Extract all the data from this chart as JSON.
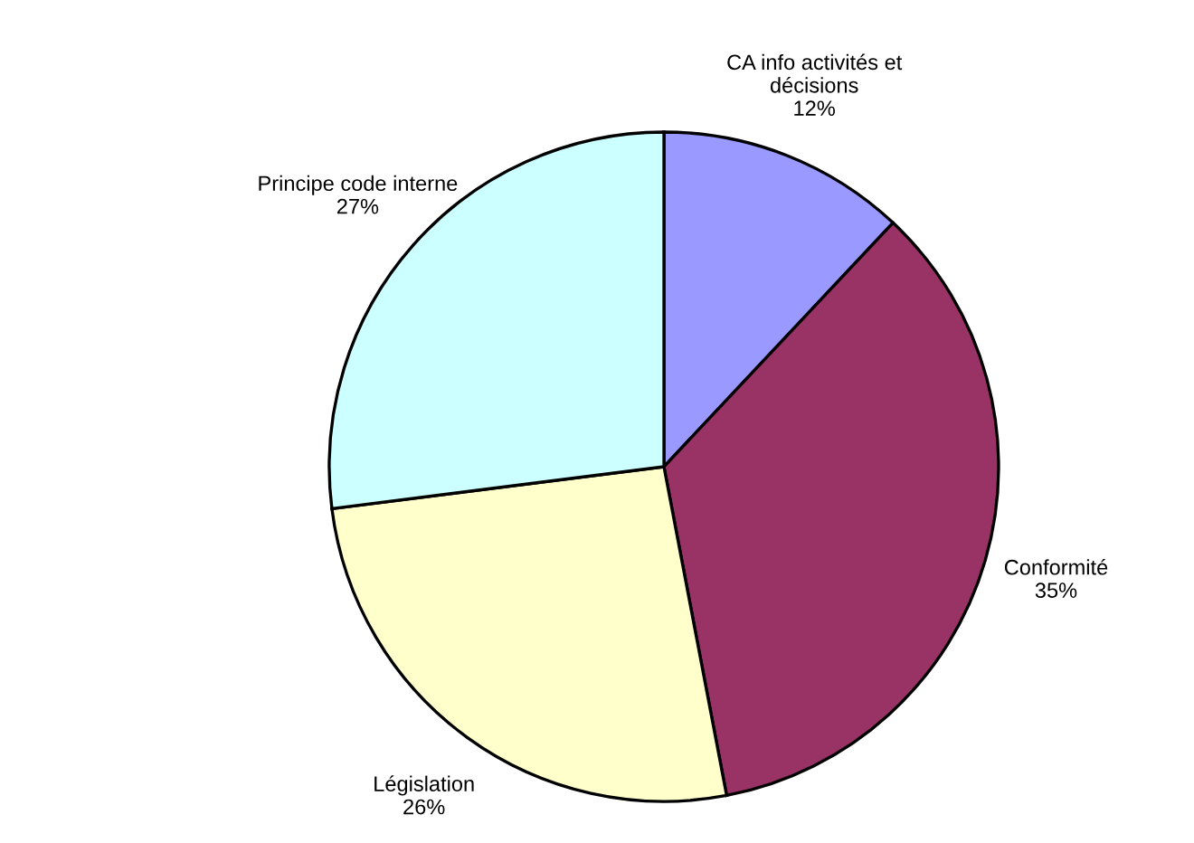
{
  "chart_data": {
    "type": "pie",
    "categories": [
      "CA info activités et\ndécisions",
      "Conformité",
      "Législation",
      "Principe code interne"
    ],
    "values": [
      12,
      35,
      26,
      27
    ],
    "value_labels": [
      "12%",
      "35%",
      "26%",
      "27%"
    ],
    "colors": [
      "#9999ff",
      "#993366",
      "#ffffcc",
      "#ccffff"
    ],
    "legend": false
  }
}
